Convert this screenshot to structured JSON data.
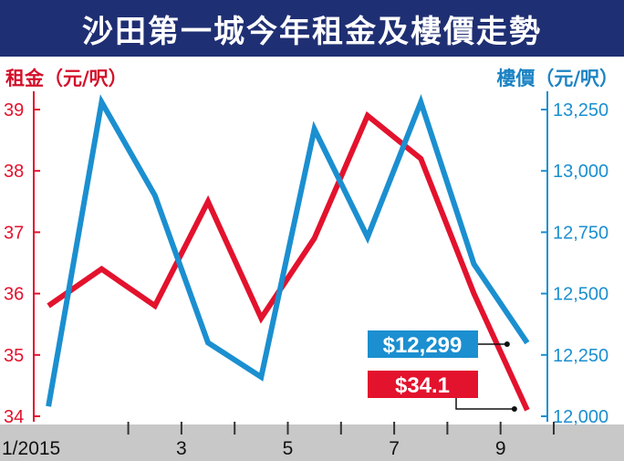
{
  "chart_data": {
    "type": "line",
    "title": "沙田第一城今年租金及樓價走勢",
    "y_left_label": "租金（元/呎）",
    "y_right_label": "樓價（元/呎）",
    "x_ticks": [
      {
        "month": 1,
        "label": "1/2015"
      },
      {
        "month": 2,
        "label": ""
      },
      {
        "month": 3,
        "label": "3"
      },
      {
        "month": 4,
        "label": ""
      },
      {
        "month": 5,
        "label": "5"
      },
      {
        "month": 6,
        "label": ""
      },
      {
        "month": 7,
        "label": "7"
      },
      {
        "month": 8,
        "label": ""
      },
      {
        "month": 9,
        "label": "9"
      },
      {
        "month": 10,
        "label": ""
      }
    ],
    "y_left": {
      "min": 34,
      "max": 39,
      "ticks": [
        34,
        35,
        36,
        37,
        38,
        39
      ]
    },
    "y_right": {
      "min": 12000,
      "max": 13250,
      "ticks": [
        "12,000",
        "12,250",
        "12,500",
        "12,750",
        "13,000",
        "13,250"
      ],
      "tick_values": [
        12000,
        12250,
        12500,
        12750,
        13000,
        13250
      ]
    },
    "series": [
      {
        "name": "租金",
        "axis": "left",
        "color": "#e3122d",
        "points": [
          [
            0.5,
            35.8
          ],
          [
            1.5,
            36.4
          ],
          [
            2.5,
            35.8
          ],
          [
            3.5,
            37.5
          ],
          [
            4.5,
            35.6
          ],
          [
            5.5,
            36.9
          ],
          [
            6.5,
            38.9
          ],
          [
            7.5,
            38.2
          ],
          [
            8.5,
            36.0
          ],
          [
            9.5,
            34.1
          ]
        ],
        "end_label": "$34.1"
      },
      {
        "name": "樓價",
        "axis": "right",
        "color": "#1b8fd0",
        "points": [
          [
            0.5,
            12040
          ],
          [
            1.5,
            13280
          ],
          [
            2.5,
            12900
          ],
          [
            3.5,
            12300
          ],
          [
            4.5,
            12160
          ],
          [
            5.5,
            13170
          ],
          [
            6.5,
            12730
          ],
          [
            7.5,
            13280
          ],
          [
            8.5,
            12620
          ],
          [
            9.5,
            12299
          ]
        ],
        "end_label": "$12,299"
      }
    ],
    "colors": {
      "title_bg": "#1f2f73",
      "x_axis_bg": "#c8c8c8",
      "rent": "#e3122d",
      "price": "#1b8fd0"
    }
  }
}
